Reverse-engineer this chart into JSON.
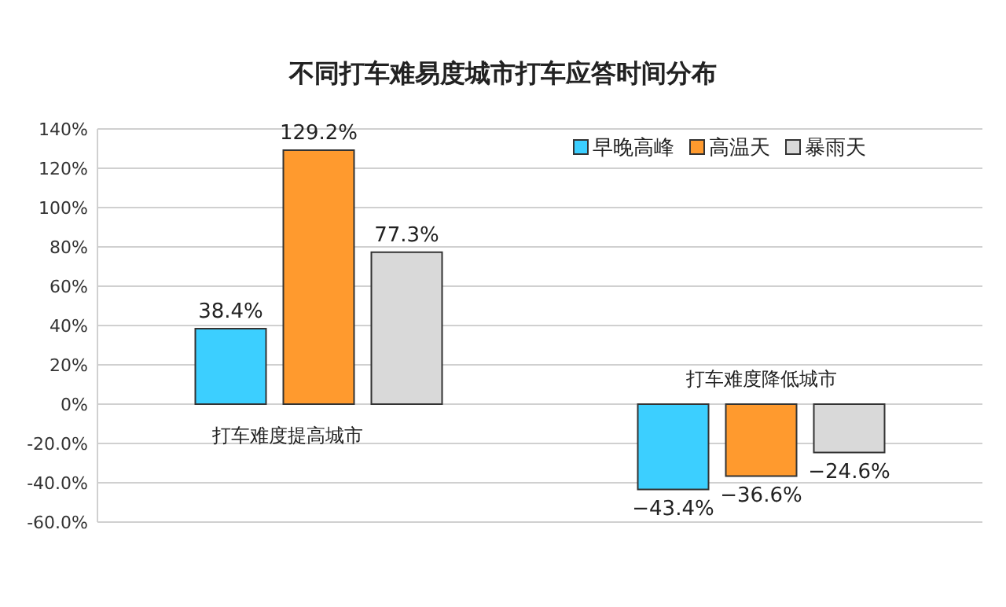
{
  "chart_data": {
    "type": "bar",
    "title": "不同打车难易度城市打车应答时间分布",
    "categories": [
      "打车难度提高城市",
      "打车难度降低城市"
    ],
    "series": [
      {
        "name": "早晚高峰",
        "color": "#3ccfff",
        "values": [
          38.4,
          -43.4
        ],
        "value_labels": [
          "38.4%",
          "−43.4%"
        ]
      },
      {
        "name": "高温天",
        "color": "#ff9a2e",
        "values": [
          129.2,
          -36.6
        ],
        "value_labels": [
          "129.2%",
          "−36.6%"
        ]
      },
      {
        "name": "暴雨天",
        "color": "#d9d9d9",
        "values": [
          77.3,
          -24.6
        ],
        "value_labels": [
          "77.3%",
          "−24.6%"
        ]
      }
    ],
    "ylim": [
      -60,
      140
    ],
    "yticks": [
      {
        "value": 140,
        "label": "140%"
      },
      {
        "value": 120,
        "label": "120%"
      },
      {
        "value": 100,
        "label": "100%"
      },
      {
        "value": 80,
        "label": "80%"
      },
      {
        "value": 60,
        "label": "60%"
      },
      {
        "value": 40,
        "label": "40%"
      },
      {
        "value": 20,
        "label": "20%"
      },
      {
        "value": 0,
        "label": "0%"
      },
      {
        "value": -20,
        "label": "-20.0%"
      },
      {
        "value": -40,
        "label": "-40.0%"
      },
      {
        "value": -60,
        "label": "-60.0%"
      }
    ],
    "grid": "y",
    "legend": "top right"
  }
}
